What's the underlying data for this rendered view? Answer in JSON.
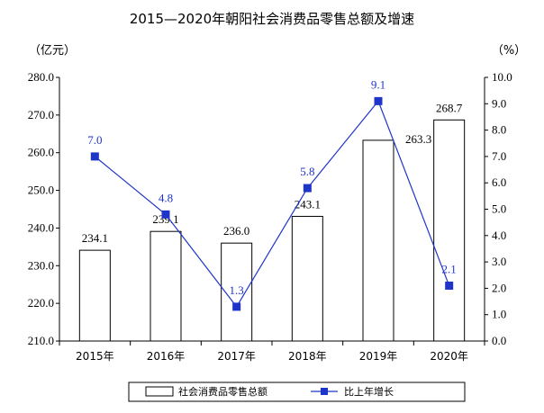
{
  "chart_data": {
    "type": "bar",
    "title": "2015—2020年朝阳社会消费品零售总额及增速",
    "categories": [
      "2015年",
      "2016年",
      "2017年",
      "2018年",
      "2019年",
      "2020年"
    ],
    "left_axis": {
      "unit_label": "（亿元）",
      "ylim": [
        210,
        280
      ],
      "ticks": [
        "210.0",
        "220.0",
        "230.0",
        "240.0",
        "250.0",
        "260.0",
        "270.0",
        "280.0"
      ]
    },
    "right_axis": {
      "unit_label": "（%）",
      "ylim": [
        0,
        10
      ],
      "ticks": [
        "0.0",
        "1.0",
        "2.0",
        "3.0",
        "4.0",
        "5.0",
        "6.0",
        "7.0",
        "8.0",
        "9.0",
        "10.0"
      ]
    },
    "series": [
      {
        "name": "社会消费品零售总额",
        "type": "bar",
        "axis": "left",
        "values": [
          234.1,
          239.1,
          236.0,
          243.1,
          263.3,
          268.7
        ],
        "labels": [
          "234.1",
          "239.1",
          "236.0",
          "243.1",
          "263.3",
          "268.7"
        ],
        "color": "#ffffff",
        "stroke": "#000000"
      },
      {
        "name": "比上年增长",
        "type": "line",
        "axis": "right",
        "values": [
          7.0,
          4.8,
          1.3,
          5.8,
          9.1,
          2.1
        ],
        "labels": [
          "7.0",
          "4.8",
          "1.3",
          "5.8",
          "9.1",
          "2.1"
        ],
        "color": "#1f35c9"
      }
    ],
    "legend_position": "bottom",
    "grid": false
  }
}
